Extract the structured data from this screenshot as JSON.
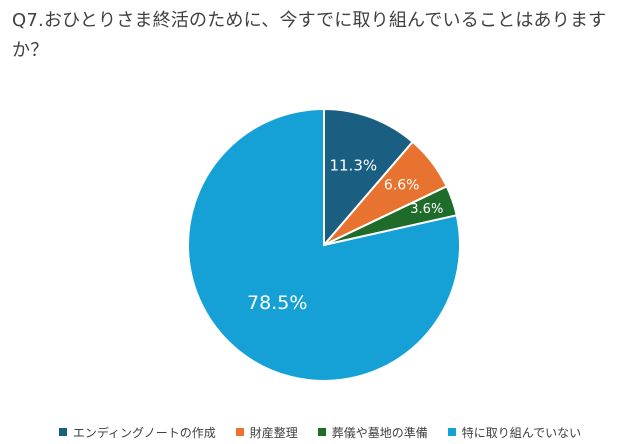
{
  "chart_data": {
    "type": "pie",
    "title": "Q7.おひとりさま終活のために、今すでに取り組んでいることはありますか？",
    "start_angle_deg": 0,
    "direction": "clockwise",
    "slices": [
      {
        "name": "エンディングノートの作成",
        "value": 11.3,
        "label": "11.3%",
        "color": "#1a5f82"
      },
      {
        "name": "財産整理",
        "value": 6.6,
        "label": "6.6%",
        "color": "#e87330"
      },
      {
        "name": "葬儀や墓地の準備",
        "value": 3.6,
        "label": "3.6%",
        "color": "#1e6b2a"
      },
      {
        "name": "特に取り組んでいない",
        "value": 78.5,
        "label": "78.5%",
        "color": "#16a1d6"
      }
    ],
    "legend_position": "bottom"
  }
}
